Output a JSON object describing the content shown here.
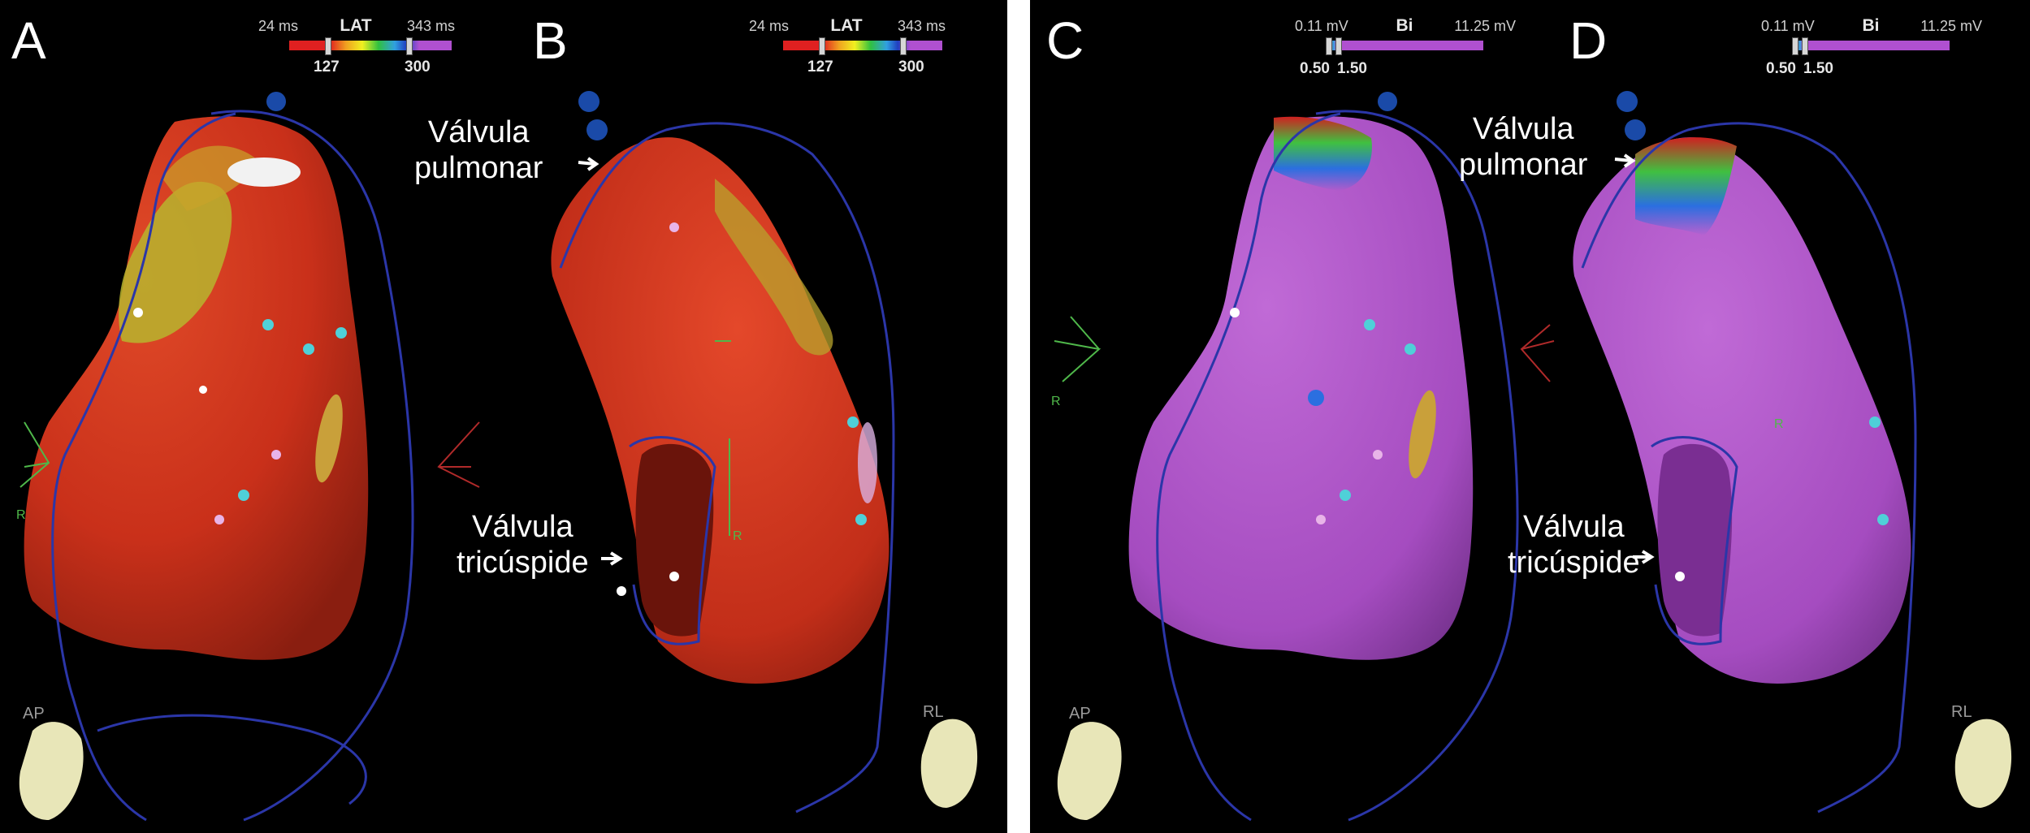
{
  "panels": {
    "a": {
      "letter": "A",
      "scale": {
        "min": "24 ms",
        "title": "LAT",
        "max": "343 ms",
        "m1": "127",
        "m2": "300"
      }
    },
    "b": {
      "letter": "B",
      "scale": {
        "min": "24 ms",
        "title": "LAT",
        "max": "343 ms",
        "m1": "127",
        "m2": "300"
      },
      "label_top_1": "Válvula",
      "label_top_2": "pulmonar",
      "label_bottom_1": "Válvula",
      "label_bottom_2": "tricúspide"
    },
    "c": {
      "letter": "C",
      "scale": {
        "min": "0.11 mV",
        "title": "Bi",
        "max": "11.25 mV",
        "m1": "0.50",
        "m2": "1.50"
      }
    },
    "d": {
      "letter": "D",
      "scale": {
        "min": "0.11 mV",
        "title": "Bi",
        "max": "11.25 mV",
        "m1": "0.50",
        "m2": "1.50"
      },
      "label_top_1": "Válvula",
      "label_top_2": "pulmonar",
      "label_bottom_1": "Válvula",
      "label_bottom_2": "tricúspide"
    }
  },
  "orientation": {
    "ap": "AP",
    "rl": "RL",
    "axis": "R"
  },
  "colors": {
    "background": "#000000",
    "lat_map": "#d8321c",
    "lat_early": "#b9b62e",
    "bipolar_map": "#b058c8",
    "bipolar_scar": "#2b6fe0",
    "outline": "#2b36a8",
    "cyan_points": "#4fd0d8",
    "pink_points": "#e8b4e8"
  }
}
